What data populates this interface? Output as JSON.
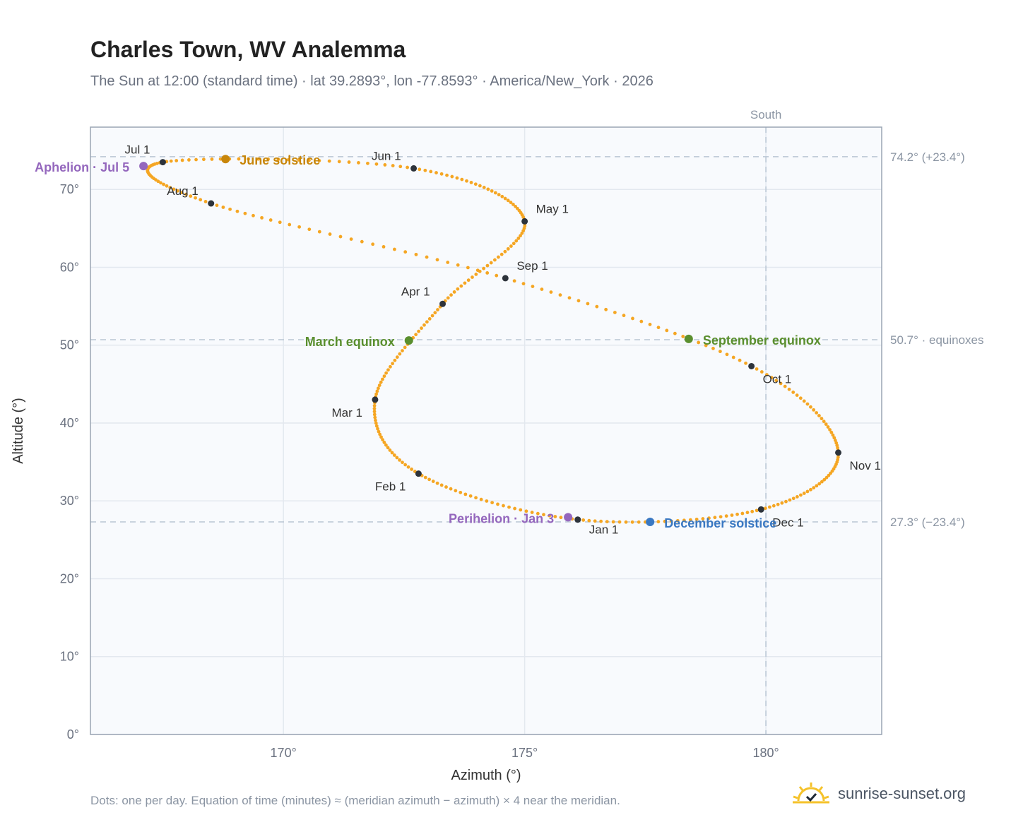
{
  "title": "Charles Town, WV Analemma",
  "subtitle": "The Sun at 12:00 (standard time) · lat 39.2893°, lon -77.8593° · America/New_York · 2026",
  "footnote": "Dots: one per day. Equation of time (minutes) ≈ (meridian azimuth − azimuth) × 4 near the meridian.",
  "brand": "sunrise-sunset.org",
  "chart_data": {
    "type": "scatter",
    "xlabel": "Azimuth (°)",
    "ylabel": "Altitude (°)",
    "xlim": [
      166,
      182.4
    ],
    "ylim": [
      0,
      78
    ],
    "xticks": [
      {
        "v": 170,
        "label": "170°"
      },
      {
        "v": 175,
        "label": "175°"
      },
      {
        "v": 180,
        "label": "180°"
      }
    ],
    "yticks": [
      {
        "v": 0,
        "label": "0°"
      },
      {
        "v": 10,
        "label": "10°"
      },
      {
        "v": 20,
        "label": "20°"
      },
      {
        "v": 30,
        "label": "30°"
      },
      {
        "v": 40,
        "label": "40°"
      },
      {
        "v": 50,
        "label": "50°"
      },
      {
        "v": 60,
        "label": "60°"
      },
      {
        "v": 70,
        "label": "70°"
      }
    ],
    "grid": true,
    "dot_color": "#f5a623",
    "south": {
      "az": 180,
      "label": "South"
    },
    "reference_lines": [
      {
        "alt": 74.2,
        "label": "74.2° (+23.4°)"
      },
      {
        "alt": 50.7,
        "label": "50.7° · equinoxes"
      },
      {
        "alt": 27.3,
        "label": "27.3° (−23.4°)"
      }
    ],
    "months": [
      {
        "label": "Jan 1",
        "az": 176.1,
        "alt": 27.6,
        "dx": 16,
        "dy": 20,
        "anchor": "start"
      },
      {
        "label": "Feb 1",
        "az": 172.8,
        "alt": 33.5,
        "dx": -18,
        "dy": 24,
        "anchor": "end"
      },
      {
        "label": "Mar 1",
        "az": 171.9,
        "alt": 43.0,
        "dx": -18,
        "dy": 24,
        "anchor": "end"
      },
      {
        "label": "Apr 1",
        "az": 173.3,
        "alt": 55.3,
        "dx": -18,
        "dy": -12,
        "anchor": "end"
      },
      {
        "label": "May 1",
        "az": 175.0,
        "alt": 65.9,
        "dx": 16,
        "dy": -12,
        "anchor": "start"
      },
      {
        "label": "Jun 1",
        "az": 172.7,
        "alt": 72.7,
        "dx": -18,
        "dy": -12,
        "anchor": "end"
      },
      {
        "label": "Jul 1",
        "az": 167.5,
        "alt": 73.5,
        "dx": -18,
        "dy": -12,
        "anchor": "end"
      },
      {
        "label": "Aug 1",
        "az": 168.5,
        "alt": 68.2,
        "dx": -18,
        "dy": -12,
        "anchor": "end"
      },
      {
        "label": "Sep 1",
        "az": 174.6,
        "alt": 58.6,
        "dx": 16,
        "dy": -12,
        "anchor": "start"
      },
      {
        "label": "Oct 1",
        "az": 179.7,
        "alt": 47.3,
        "dx": 16,
        "dy": 24,
        "anchor": "start"
      },
      {
        "label": "Nov 1",
        "az": 181.5,
        "alt": 36.2,
        "dx": 16,
        "dy": 24,
        "anchor": "start"
      },
      {
        "label": "Dec 1",
        "az": 179.9,
        "alt": 28.9,
        "dx": 16,
        "dy": 24,
        "anchor": "start"
      }
    ],
    "events": [
      {
        "label": "June solstice",
        "az": 168.8,
        "alt": 73.9,
        "color": "#c8860a",
        "dx": 20,
        "dy": 8,
        "anchor": "start"
      },
      {
        "label": "Aphelion · Jul 5",
        "az": 167.1,
        "alt": 73.0,
        "color": "#9467bd",
        "dx": -20,
        "dy": 8,
        "anchor": "end"
      },
      {
        "label": "March equinox",
        "az": 172.6,
        "alt": 50.6,
        "color": "#5a8f2e",
        "dx": -20,
        "dy": 8,
        "anchor": "end"
      },
      {
        "label": "September equinox",
        "az": 178.4,
        "alt": 50.8,
        "color": "#5a8f2e",
        "dx": 20,
        "dy": 8,
        "anchor": "start"
      },
      {
        "label": "Perihelion · Jan 3",
        "az": 175.9,
        "alt": 27.9,
        "color": "#9467bd",
        "dx": -20,
        "dy": 8,
        "anchor": "end"
      },
      {
        "label": "December solstice",
        "az": 177.6,
        "alt": 27.3,
        "color": "#3a78c2",
        "dx": 20,
        "dy": 8,
        "anchor": "start"
      }
    ]
  }
}
